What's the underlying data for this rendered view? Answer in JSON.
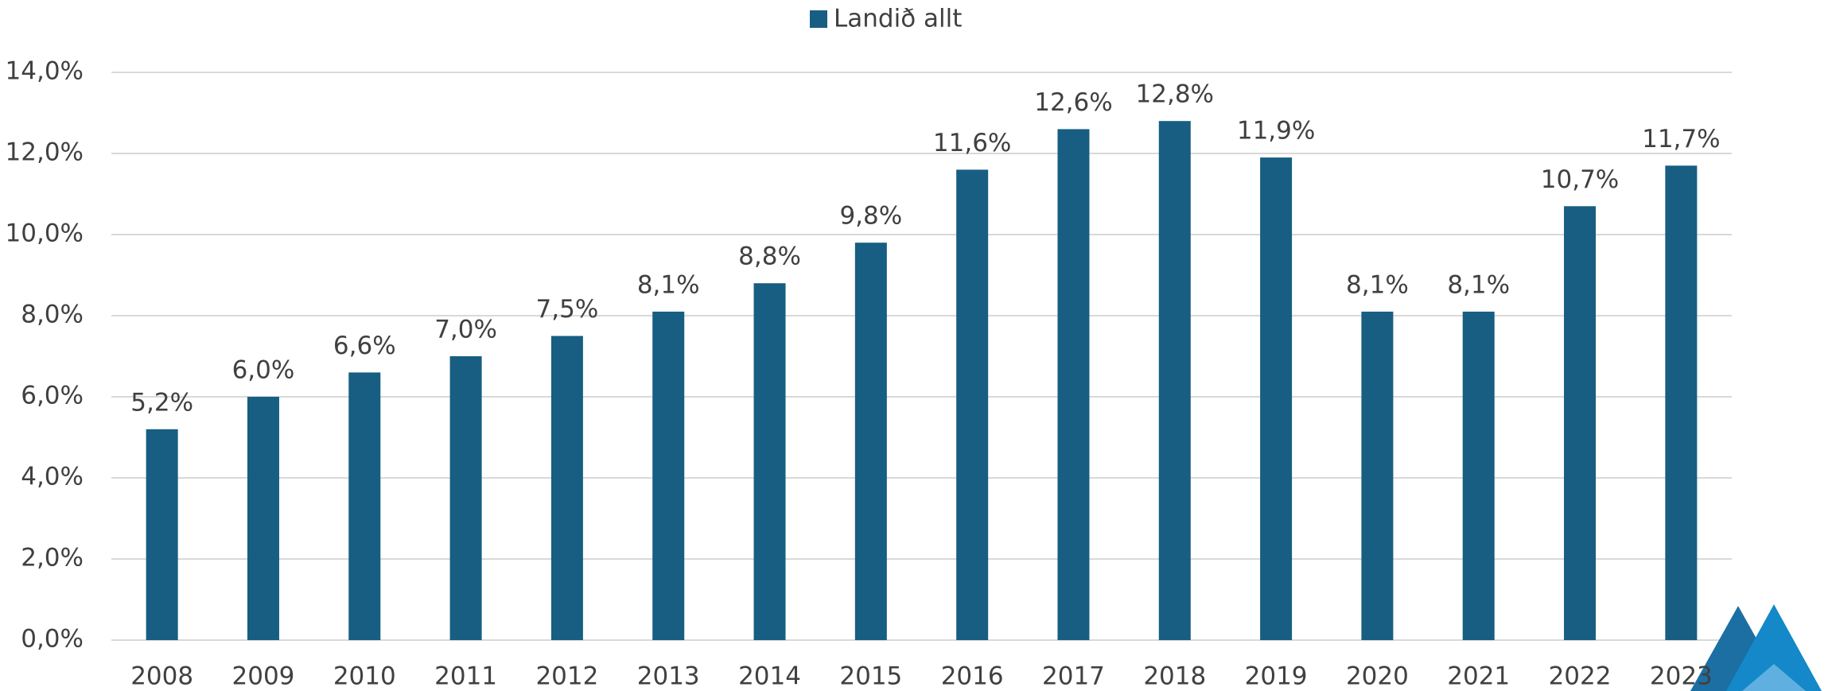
{
  "chart_data": {
    "type": "bar",
    "legend": "Landið allt",
    "categories": [
      "2008",
      "2009",
      "2010",
      "2011",
      "2012",
      "2013",
      "2014",
      "2015",
      "2016",
      "2017",
      "2018",
      "2019",
      "2020",
      "2021",
      "2022",
      "2023"
    ],
    "values": [
      5.2,
      6.0,
      6.6,
      7.0,
      7.5,
      8.1,
      8.8,
      9.8,
      11.6,
      12.6,
      12.8,
      11.9,
      8.1,
      8.1,
      10.7,
      11.7
    ],
    "value_labels": [
      "5,2%",
      "6,0%",
      "6,6%",
      "7,0%",
      "7,5%",
      "8,1%",
      "8,8%",
      "9,8%",
      "11,6%",
      "12,6%",
      "12,8%",
      "11,9%",
      "8,1%",
      "8,1%",
      "10,7%",
      "11,7%"
    ],
    "color": "#175e82",
    "ylim": [
      0,
      14
    ],
    "yticks": [
      {
        "value": 0,
        "label": "0,0%"
      },
      {
        "value": 2,
        "label": "2,0%"
      },
      {
        "value": 4,
        "label": "4,0%"
      },
      {
        "value": 6,
        "label": "6,0%"
      },
      {
        "value": 8,
        "label": "8,0%"
      },
      {
        "value": 10,
        "label": "10,0%"
      },
      {
        "value": 12,
        "label": "12,0%"
      },
      {
        "value": 14,
        "label": "14,0%"
      }
    ],
    "grid": true
  }
}
